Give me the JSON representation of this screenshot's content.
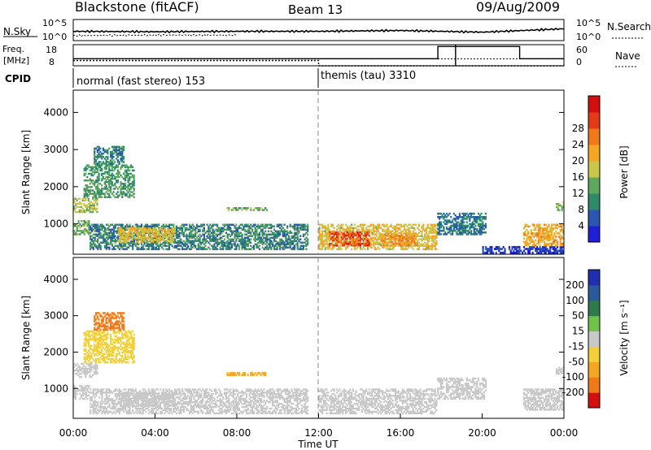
{
  "header": {
    "radar": "Blackstone (fitACF)",
    "beam": "Beam 13",
    "date": "09/Aug/2009"
  },
  "noise_panel": {
    "left_label": "N.Sky",
    "right_label": "N.Search",
    "left_ticks": [
      "10^5",
      "10^0"
    ],
    "right_ticks": [
      "10^5",
      "10^0"
    ]
  },
  "freq_panel": {
    "left_label_1": "Freq.",
    "left_label_2": "[MHz]",
    "right_label": "Nave",
    "left_ticks": [
      "18",
      "8"
    ],
    "right_ticks": [
      "60",
      "0"
    ]
  },
  "cpid": {
    "label": "CPID",
    "mode_1": "normal (fast stereo) 153",
    "mode_2": "themis (tau) 3310"
  },
  "colors": {
    "power_scale": [
      "#1f1fd6",
      "#2a55b0",
      "#2f8a6a",
      "#5ea85c",
      "#c9c74a",
      "#f5a623",
      "#f07a1a",
      "#e33b1a",
      "#d40f0f"
    ],
    "velocity_scale": [
      "#1f2fb0",
      "#2a5a9a",
      "#2f7a4a",
      "#6fc24a",
      "#c8c8c8",
      "#f2d03a",
      "#f5a623",
      "#f07a1a",
      "#d40f0f"
    ]
  },
  "chart_data": [
    {
      "type": "line",
      "title": "Blackstone (fitACF)",
      "panel": "noise",
      "series": [
        {
          "name": "N.Sky",
          "x": [
            "00:00",
            "04:00",
            "08:00",
            "12:00",
            "16:00",
            "20:00",
            "00:00"
          ],
          "values": [
            2.2,
            2.1,
            2.2,
            2.2,
            2.4,
            2.0,
            2.8
          ]
        },
        {
          "name": "N.Search",
          "x": [
            "00:00",
            "04:00",
            "08:00",
            "12:00",
            "16:00",
            "20:00",
            "00:00"
          ],
          "values": [
            1.2,
            1.3,
            1.3,
            null,
            null,
            null,
            null
          ]
        }
      ]
    },
    {
      "type": "line",
      "panel": "freq",
      "series": [
        {
          "name": "Freq.",
          "x": [
            "00:00",
            "12:00",
            "12:00",
            "24:00"
          ],
          "values": [
            10.5,
            10.5,
            8.0,
            8.0
          ]
        },
        {
          "name": "Nave",
          "x": [
            "00:00",
            "17:50",
            "17:50",
            "21:50",
            "21:50",
            "24:00"
          ],
          "values": [
            20,
            20,
            55,
            55,
            20,
            20
          ]
        }
      ]
    },
    {
      "type": "heatmap",
      "panel": "power",
      "xlabel": "",
      "ylabel": "Slant Range [km]",
      "xlim": [
        0,
        24
      ],
      "ylim": [
        180,
        4600
      ],
      "yticks": [
        "1000",
        "2000",
        "3000",
        "4000"
      ],
      "colorbar_label": "Power [dB]",
      "colorbar_ticks": [
        "4",
        "8",
        "12",
        "16",
        "20",
        "24",
        "28"
      ],
      "blobs": [
        {
          "t0": 0.0,
          "t1": 1.2,
          "r0": 1300,
          "r1": 1700,
          "v": 16
        },
        {
          "t0": 0.5,
          "t1": 3.0,
          "r0": 1700,
          "r1": 2600,
          "v": 12
        },
        {
          "t0": 1.0,
          "t1": 2.5,
          "r0": 2600,
          "r1": 3100,
          "v": 10
        },
        {
          "t0": 0.0,
          "t1": 0.8,
          "r0": 700,
          "r1": 1100,
          "v": 14
        },
        {
          "t0": 0.8,
          "t1": 11.5,
          "r0": 300,
          "r1": 1000,
          "v": 10
        },
        {
          "t0": 2.2,
          "t1": 5.0,
          "r0": 500,
          "r1": 900,
          "v": 18
        },
        {
          "t0": 7.5,
          "t1": 9.5,
          "r0": 1350,
          "r1": 1450,
          "v": 14
        },
        {
          "t0": 12.0,
          "t1": 17.8,
          "r0": 300,
          "r1": 1000,
          "v": 18
        },
        {
          "t0": 12.5,
          "t1": 14.5,
          "r0": 400,
          "r1": 800,
          "v": 26
        },
        {
          "t0": 15.0,
          "t1": 16.8,
          "r0": 400,
          "r1": 750,
          "v": 22
        },
        {
          "t0": 17.8,
          "t1": 20.2,
          "r0": 700,
          "r1": 1300,
          "v": 9
        },
        {
          "t0": 20.0,
          "t1": 24.0,
          "r0": 200,
          "r1": 400,
          "v": 5
        },
        {
          "t0": 22.0,
          "t1": 24.0,
          "r0": 400,
          "r1": 1000,
          "v": 20
        },
        {
          "t0": 23.6,
          "t1": 24.0,
          "r0": 1350,
          "r1": 1600,
          "v": 14
        }
      ]
    },
    {
      "type": "heatmap",
      "panel": "velocity",
      "xlabel": "Time UT",
      "ylabel": "Slant Range [km]",
      "xlim": [
        0,
        24
      ],
      "ylim": [
        180,
        4600
      ],
      "xticks": [
        "00:00",
        "04:00",
        "08:00",
        "12:00",
        "16:00",
        "20:00",
        "00:00"
      ],
      "yticks": [
        "1000",
        "2000",
        "3000",
        "4000"
      ],
      "colorbar_label": "Velocity [m s⁻¹]",
      "colorbar_ticks": [
        "200",
        "100",
        "50",
        "15",
        "-15",
        "-50",
        "-100",
        "-200"
      ],
      "blobs": [
        {
          "t0": 0.0,
          "t1": 1.2,
          "r0": 1300,
          "r1": 1700,
          "v": -10
        },
        {
          "t0": 0.5,
          "t1": 3.0,
          "r0": 1700,
          "r1": 2600,
          "v": -40
        },
        {
          "t0": 1.0,
          "t1": 2.5,
          "r0": 2600,
          "r1": 3100,
          "v": -120
        },
        {
          "t0": 0.0,
          "t1": 0.8,
          "r0": 700,
          "r1": 1100,
          "v": 5
        },
        {
          "t0": 0.8,
          "t1": 11.5,
          "r0": 300,
          "r1": 1000,
          "v": 0
        },
        {
          "t0": 2.2,
          "t1": 5.0,
          "r0": 500,
          "r1": 900,
          "v": -10
        },
        {
          "t0": 7.5,
          "t1": 9.5,
          "r0": 1350,
          "r1": 1450,
          "v": -60
        },
        {
          "t0": 12.0,
          "t1": 17.8,
          "r0": 300,
          "r1": 1000,
          "v": 0
        },
        {
          "t0": 17.8,
          "t1": 20.2,
          "r0": 700,
          "r1": 1300,
          "v": 5
        },
        {
          "t0": 22.0,
          "t1": 24.0,
          "r0": 400,
          "r1": 1000,
          "v": 0
        },
        {
          "t0": 23.6,
          "t1": 24.0,
          "r0": 1350,
          "r1": 1600,
          "v": 5
        }
      ]
    }
  ]
}
